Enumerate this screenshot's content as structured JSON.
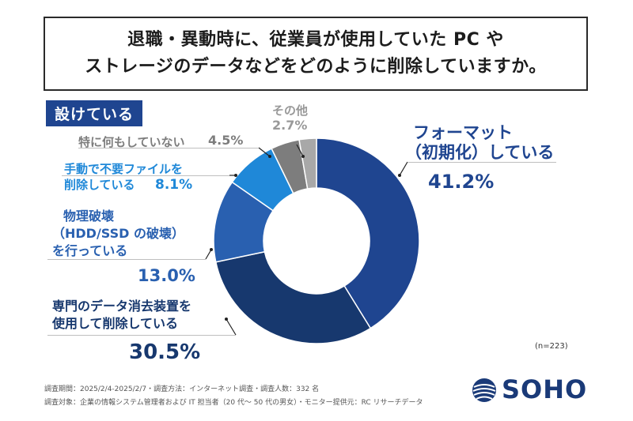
{
  "title": {
    "line1": "退職・異動時に、従業員が使用していた PC や",
    "line2": "ストレージのデータなどをどのように削除していますか。"
  },
  "badge": "設けている",
  "chart_data": {
    "type": "pie",
    "variant": "donut",
    "title": "退職・異動時に、従業員が使用していた PC や ストレージのデータなどをどのように削除していますか。",
    "unit": "%",
    "n": 223,
    "slices": [
      {
        "label": "フォーマット（初期化）している",
        "value": 41.2,
        "value_label": "41.2%",
        "color": "#1f4590"
      },
      {
        "label": "専門のデータ消去装置を使用して削除している",
        "value": 30.5,
        "value_label": "30.5%",
        "color": "#17386e"
      },
      {
        "label": "物理破壊（HDD/SSD の破壊）を行っている",
        "value": 13.0,
        "value_label": "13.0%",
        "color": "#2960b0"
      },
      {
        "label": "手動で不要ファイルを削除している",
        "value": 8.1,
        "value_label": "8.1%",
        "color": "#1f88d8"
      },
      {
        "label": "特に何もしていない",
        "value": 4.5,
        "value_label": "4.5%",
        "color": "#7d7d7d"
      },
      {
        "label": "その他",
        "value": 2.7,
        "value_label": "2.7%",
        "color": "#a8a8a8"
      }
    ]
  },
  "labels": {
    "format_l1": "フォーマット",
    "format_l2": "（初期化）している",
    "format_val": "41.2%",
    "device_l1": "専門のデータ消去装置を",
    "device_l2": "使用して削除している",
    "device_val": "30.5%",
    "phys_l1": "物理破壊",
    "phys_l2": "（HDD/SSD の破壊）",
    "phys_l3": "を行っている",
    "phys_val": "13.0%",
    "manual_l1": "手動で不要ファイルを",
    "manual_l2": "削除している",
    "manual_val": "8.1%",
    "nothing_l": "特に何もしていない",
    "nothing_val": "4.5%",
    "other_l": "その他",
    "other_val": "2.7%"
  },
  "n_note": "(n=223)",
  "footer": {
    "line1": "調査期間：2025/2/4-2025/2/7・調査方法：インターネット調査・調査人数：332 名",
    "line2": "調査対象：企業の情報システム管理者および IT 担当者（20 代〜 50 代の男女）・モニター提供元：RC リサーチデータ"
  },
  "logo": {
    "text": "SOHO",
    "color": "#1a3a78"
  }
}
